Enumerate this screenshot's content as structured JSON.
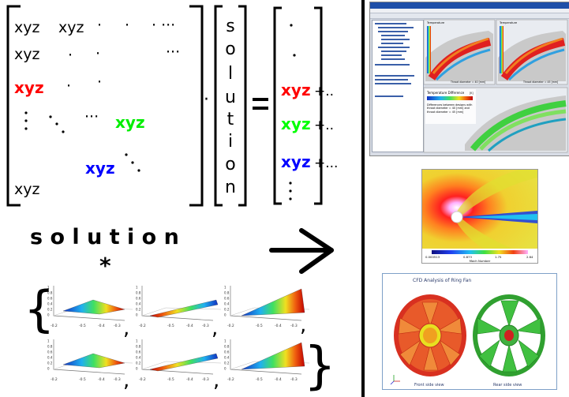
{
  "matrix": {
    "rows": [
      {
        "cells": [
          "xyz",
          "xyz",
          "·",
          "·",
          "· ···"
        ]
      },
      {
        "cells": [
          "xyz",
          "·",
          "·",
          "···"
        ]
      },
      {
        "cells": [
          "xyz",
          "·",
          "·"
        ]
      },
      {
        "cells": [
          "···",
          "xyz"
        ]
      },
      {
        "cells": [
          "xyz"
        ]
      },
      {
        "cells": [
          "xyz"
        ]
      }
    ],
    "colors": {
      "red": "#ff0000",
      "green": "#00ff00",
      "blue": "#0000ff",
      "black": "#000000"
    }
  },
  "operator_dot": "·",
  "solution_vector": {
    "letters": [
      "s",
      "o",
      "l",
      "u",
      "t",
      "i",
      "o",
      "n"
    ]
  },
  "equals_sign": "=",
  "rhs_vector": {
    "entries": [
      {
        "term": "xyz",
        "suffix": "+..",
        "color": "#ff0000"
      },
      {
        "term": "xyz",
        "suffix": "+..",
        "color": "#00ff00"
      },
      {
        "term": "xyz",
        "suffix": "+...",
        "color": "#0000ff"
      }
    ]
  },
  "bottom_left": {
    "word": "s o l u t i o n",
    "star": "*",
    "brace_open": "{",
    "brace_close": "}",
    "comma": ",",
    "plot_ticks": {
      "x": [
        "-0.2",
        "-0.5",
        "-0.4",
        "-0.3"
      ],
      "y": [
        "1",
        "0.8",
        "0.6",
        "0.4",
        "0.2",
        "0"
      ]
    }
  },
  "right_panels": {
    "screenshot": {
      "titlebar_color": "#1f4fa8",
      "overlay_title": "Temperature Difference",
      "overlay_unit": "[K]",
      "overlay_note": "Differences between designs with throat diameter = 40 [mm] and throat diameter = 45 [mm]",
      "label_a": "Throat diameter = 40 [mm]",
      "label_b": "Throat diameter = 45 [mm]",
      "legend_top_a": "Temperature",
      "legend_top_b": "Temperature"
    },
    "mach": {
      "legend_title": "Mach Number",
      "ticks": [
        "0.000513",
        "0.873",
        "1.75",
        "2.64"
      ]
    },
    "fan": {
      "title": "CFD Analysis of Ring Fan",
      "front_label": "Front side view",
      "rear_label": "Rear side view"
    }
  }
}
